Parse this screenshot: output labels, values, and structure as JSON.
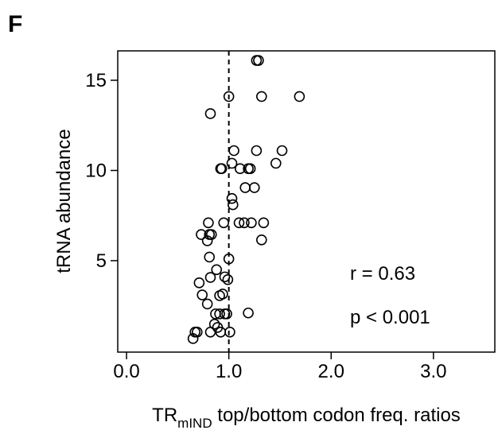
{
  "chart_data": {
    "type": "scatter",
    "panel_label": "F",
    "xlabel_main": "TR",
    "xlabel_sub": "mIND",
    "xlabel_rest": " top/bottom codon freq. ratios",
    "ylabel": "tRNA abundance",
    "xlim": [
      -0.086,
      3.6
    ],
    "ylim": [
      -0.07,
      16.63
    ],
    "xticks": [
      {
        "value": 0,
        "label": "0.0"
      },
      {
        "value": 1,
        "label": "1.0"
      },
      {
        "value": 2,
        "label": "2.0"
      },
      {
        "value": 3,
        "label": "3.0"
      }
    ],
    "yticks": [
      5,
      10,
      15
    ],
    "reference_line_x": 1,
    "color": "#000000",
    "x": [
      1.27,
      1.29,
      1.0,
      1.32,
      1.69,
      0.82,
      1.05,
      1.27,
      1.52,
      1.03,
      1.46,
      0.92,
      0.93,
      1.11,
      1.19,
      1.21,
      1.16,
      1.25,
      1.03,
      1.04,
      1.1,
      1.15,
      0.95,
      1.22,
      1.34,
      0.8,
      1.32,
      0.73,
      0.81,
      0.83,
      0.79,
      0.81,
      1.0,
      0.88,
      0.96,
      0.82,
      0.99,
      0.71,
      0.74,
      0.91,
      0.94,
      0.79,
      0.87,
      0.91,
      0.96,
      0.98,
      1.19,
      0.86,
      0.89,
      0.69,
      0.82,
      0.92,
      1.01,
      0.67,
      0.65
    ],
    "values": [
      16.1,
      16.1,
      14.1,
      14.1,
      14.1,
      13.15,
      11.1,
      11.1,
      11.1,
      10.4,
      10.4,
      10.1,
      10.1,
      10.1,
      10.1,
      10.1,
      9.05,
      9.05,
      8.45,
      8.1,
      7.1,
      7.1,
      7.1,
      7.1,
      7.1,
      7.1,
      6.15,
      6.45,
      6.45,
      6.45,
      6.1,
      5.2,
      5.1,
      4.5,
      4.1,
      4.07,
      3.95,
      3.77,
      3.1,
      3.06,
      3.15,
      2.6,
      2.05,
      2.05,
      2.05,
      2.05,
      2.1,
      1.48,
      1.3,
      1.04,
      1.04,
      1.04,
      1.04,
      1.04,
      0.68
    ],
    "annotations": [
      {
        "text": "r = 0.63",
        "color": "#000000"
      },
      {
        "text": "p < 0.001",
        "color": "#d62728"
      }
    ]
  }
}
